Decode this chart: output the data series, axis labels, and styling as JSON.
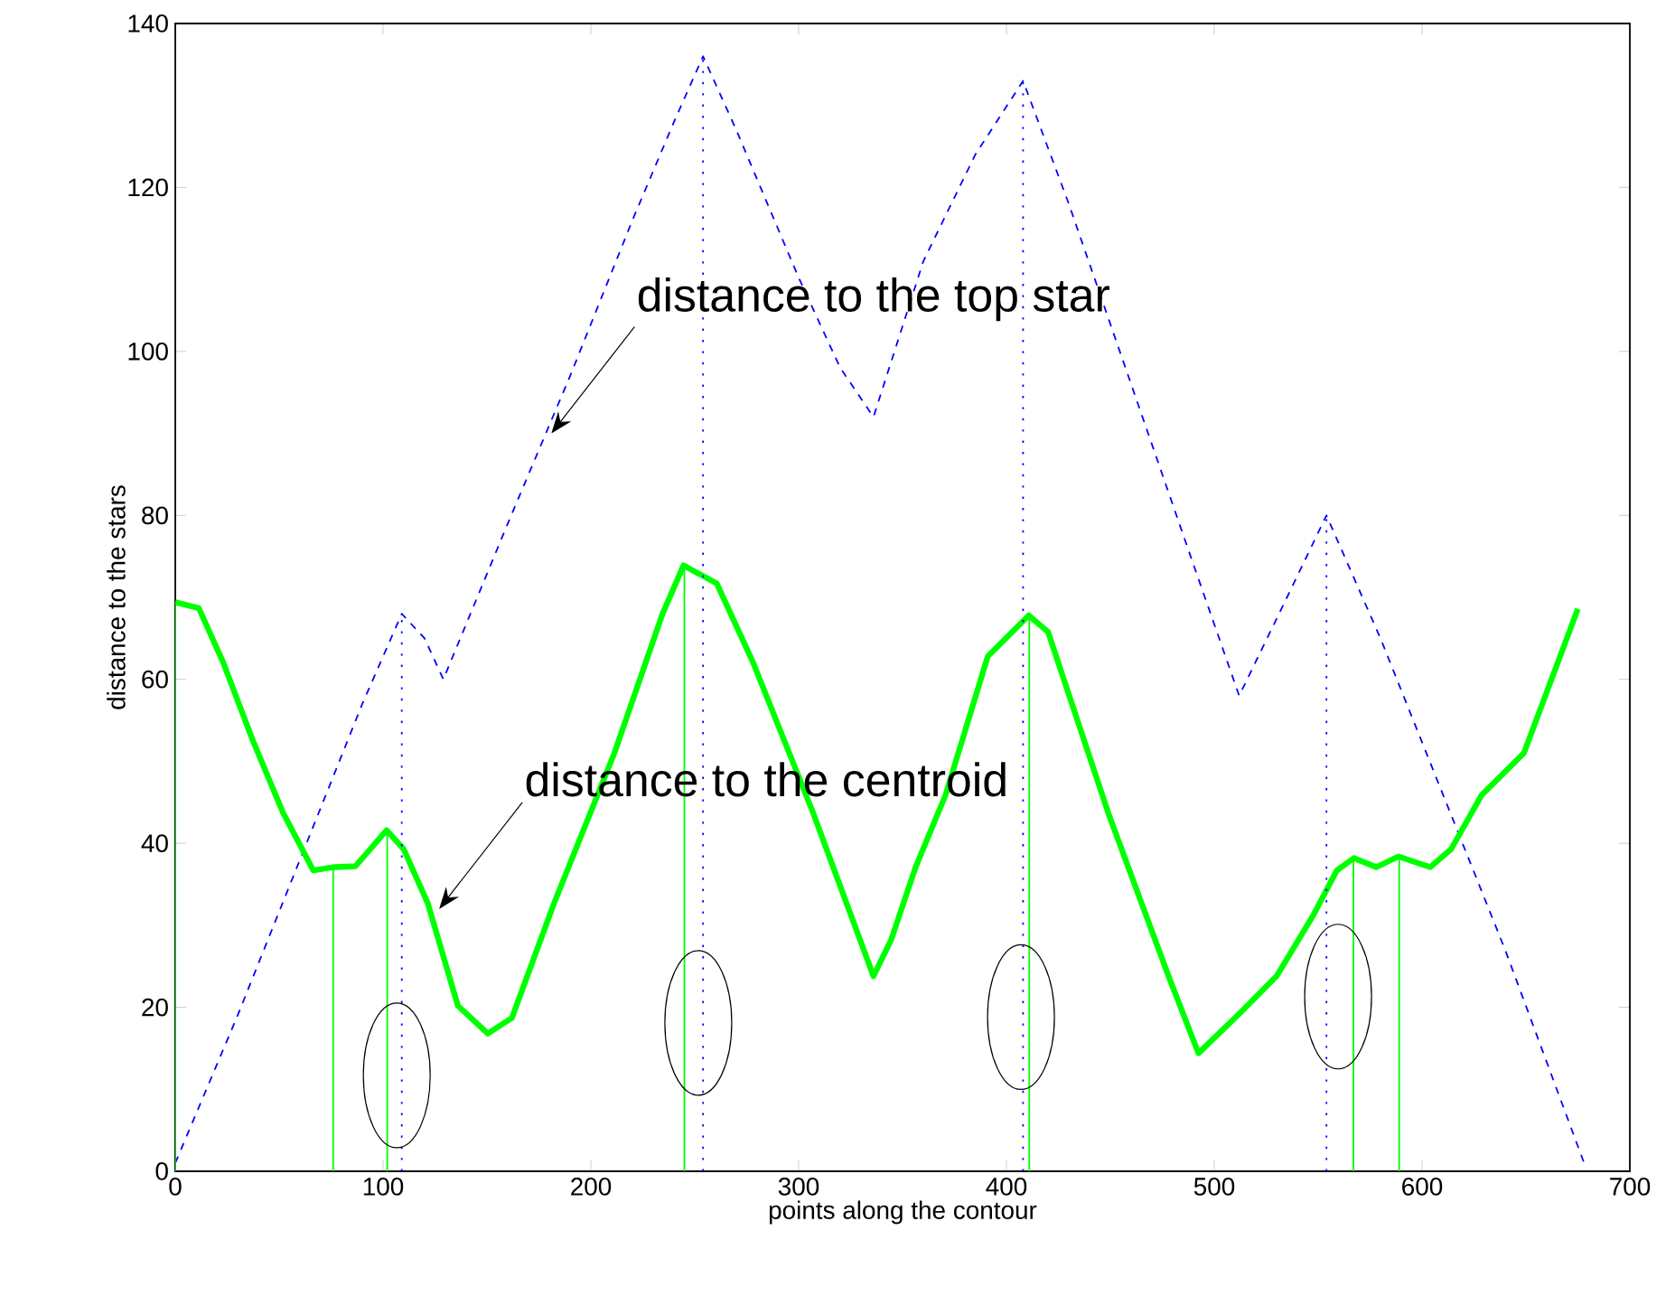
{
  "chart_data": {
    "type": "line",
    "xlabel": "points along the contour",
    "ylabel": "distance to the stars",
    "xlim": [
      0,
      700
    ],
    "ylim": [
      0,
      140
    ],
    "xticks": [
      0,
      100,
      200,
      300,
      400,
      500,
      600,
      700
    ],
    "yticks": [
      0,
      20,
      40,
      60,
      80,
      100,
      120,
      140
    ],
    "series": [
      {
        "color": "#0000ff",
        "line_style": "dashed",
        "x": [
          0,
          30,
          60,
          90,
          109,
          120,
          129,
          160,
          190,
          220,
          240,
          254,
          270,
          300,
          320,
          336,
          360,
          385,
          408,
          430,
          460,
          490,
          512,
          535,
          554,
          580,
          610,
          640,
          678
        ],
        "values": [
          1,
          19,
          38,
          57,
          68,
          65,
          60,
          79,
          97,
          116,
          128,
          136,
          127,
          109,
          98,
          92,
          111,
          124,
          133,
          118,
          96,
          74,
          58,
          70,
          80,
          65,
          46,
          27,
          1
        ]
      },
      {
        "color": "#00ff00",
        "x": [
          0,
          11.3,
          23,
          37.4,
          51.9,
          66.4,
          76.5,
          86.7,
          101.7,
          109.9,
          121.5,
          136,
          150.4,
          162,
          182.3,
          211.3,
          234.5,
          244.6,
          260.6,
          278,
          307,
          336,
          344.6,
          356.3,
          370.7,
          391,
          410.7,
          420,
          449,
          478,
          492.4,
          512.8,
          530,
          547.6,
          559,
          567.2,
          578,
          588.7,
          604,
          614,
          628.7,
          649,
          675
        ],
        "values": [
          69.4,
          68.7,
          62.1,
          52.5,
          43.7,
          36.7,
          37.1,
          37.2,
          41.6,
          39.3,
          32.7,
          20.2,
          16.8,
          18.7,
          32.7,
          51,
          68,
          73.9,
          71.7,
          62.1,
          43.7,
          23.8,
          28.3,
          37.1,
          45.9,
          62.8,
          67.8,
          65.8,
          43.7,
          23.8,
          14.4,
          19.4,
          23.8,
          31.2,
          36.7,
          38.2,
          37.1,
          38.4,
          37.1,
          39.3,
          45.9,
          51,
          68.6
        ]
      },
      {
        "color": "#00ff00",
        "line_style": "solid",
        "x": [
          0,
          0
        ],
        "values": [
          0,
          69
        ]
      },
      {
        "color": "#00ff00",
        "line_style": "solid",
        "x": [
          76,
          76
        ],
        "values": [
          0,
          37
        ]
      },
      {
        "color": "#00ff00",
        "line_style": "solid",
        "x": [
          102,
          102
        ],
        "values": [
          0,
          41.6
        ]
      },
      {
        "color": "#00ff00",
        "line_style": "solid",
        "x": [
          245,
          245
        ],
        "values": [
          0,
          74
        ]
      },
      {
        "color": "#00ff00",
        "line_style": "solid",
        "x": [
          411,
          411
        ],
        "values": [
          0,
          67.8
        ]
      },
      {
        "color": "#00ff00",
        "line_style": "solid",
        "x": [
          567,
          567
        ],
        "values": [
          0,
          38.2
        ]
      },
      {
        "color": "#00ff00",
        "line_style": "solid",
        "x": [
          589,
          589
        ],
        "values": [
          0,
          38.4
        ]
      },
      {
        "color": "#0000ff",
        "line_style": "dotted",
        "x": [
          109,
          109
        ],
        "values": [
          0,
          68
        ]
      },
      {
        "color": "#0000ff",
        "line_style": "dotted",
        "x": [
          254,
          254
        ],
        "values": [
          0,
          136
        ]
      },
      {
        "color": "#0000ff",
        "line_style": "dotted",
        "x": [
          408,
          408
        ],
        "values": [
          0,
          133
        ]
      },
      {
        "color": "#0000ff",
        "line_style": "dotted",
        "x": [
          554,
          554
        ],
        "values": [
          0,
          80
        ]
      }
    ],
    "annotations": [
      {
        "text": "distance to the top star",
        "x": 181,
        "y": 90
      },
      {
        "text": "distance to the centroid",
        "x": 127,
        "y": 32
      }
    ]
  }
}
